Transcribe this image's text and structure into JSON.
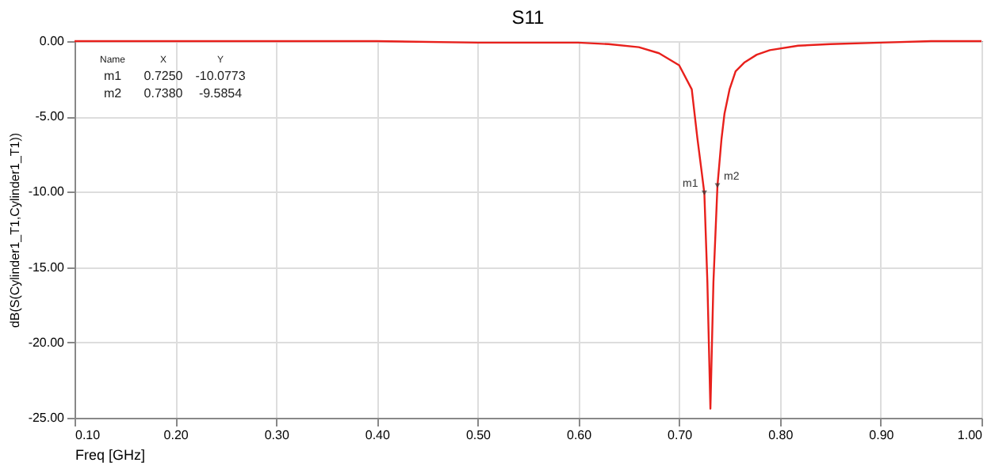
{
  "chart_data": {
    "type": "line",
    "title": "S11",
    "xlabel": "Freq [GHz]",
    "ylabel": "dB(S(Cylinder1_T1,Cylinder1_T1))",
    "x": [
      0.1,
      0.2,
      0.3,
      0.4,
      0.5,
      0.55,
      0.6,
      0.63,
      0.66,
      0.68,
      0.7,
      0.7125,
      0.718,
      0.722,
      0.725,
      0.728,
      0.731,
      0.734,
      0.738,
      0.742,
      0.745,
      0.75,
      0.756,
      0.765,
      0.777,
      0.79,
      0.818,
      0.85,
      0.9,
      0.95,
      1.0
    ],
    "series": [
      {
        "color": "#e8201c",
        "values": [
          0.0,
          0.0,
          0.0,
          0.0,
          -0.1,
          -0.1,
          -0.1,
          -0.2,
          -0.4,
          -0.8,
          -1.6,
          -3.2,
          -6.4,
          -8.5,
          -10.1,
          -16.0,
          -24.4,
          -16.0,
          -9.6,
          -6.5,
          -4.8,
          -3.2,
          -2.0,
          -1.4,
          -0.9,
          -0.6,
          -0.3,
          -0.2,
          -0.1,
          0.0,
          0.0
        ]
      }
    ],
    "xlim": [
      0.1,
      1.0
    ],
    "xticks": [
      {
        "value": 0.1,
        "label": "0.10"
      },
      {
        "value": 0.2,
        "label": "0.20"
      },
      {
        "value": 0.3,
        "label": "0.30"
      },
      {
        "value": 0.4,
        "label": "0.40"
      },
      {
        "value": 0.5,
        "label": "0.50"
      },
      {
        "value": 0.6,
        "label": "0.60"
      },
      {
        "value": 0.7,
        "label": "0.70"
      },
      {
        "value": 0.8,
        "label": "0.80"
      },
      {
        "value": 0.9,
        "label": "0.90"
      },
      {
        "value": 1.0,
        "label": "1.00"
      }
    ],
    "ylim": [
      -25,
      0
    ],
    "yticks": [
      {
        "value": 0,
        "label": "0.00"
      },
      {
        "value": -5,
        "label": "-5.00"
      },
      {
        "value": -10,
        "label": "-10.00"
      },
      {
        "value": -15,
        "label": "-15.00"
      },
      {
        "value": -20,
        "label": "-20.00"
      },
      {
        "value": -25,
        "label": "-25.00"
      }
    ],
    "grid": true,
    "annotations": [
      "Name",
      "X",
      "Y",
      "m1",
      "0.7250",
      "-10.0773",
      "m2",
      "0.7380",
      "-9.5854",
      {
        "text": "m1",
        "x": 0.725,
        "y": -10.0773
      },
      {
        "text": "m2",
        "x": 0.738,
        "y": -9.5854
      }
    ]
  }
}
